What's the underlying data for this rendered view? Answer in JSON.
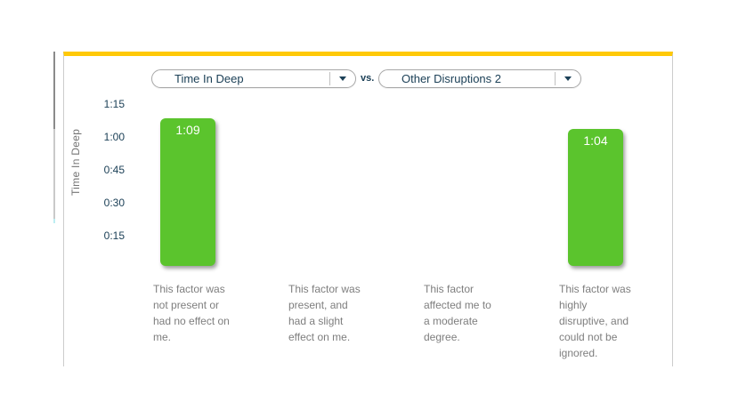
{
  "header": {
    "metric_dropdown": {
      "value": "Time In Deep"
    },
    "vs_label": "vs.",
    "factor_dropdown": {
      "value": "Other Disruptions 2"
    }
  },
  "chart": {
    "y_axis_title": "Time In Deep",
    "y_ticks": [
      "1:15",
      "1:00",
      "0:45",
      "0:30",
      "0:15"
    ],
    "categories_wrapped": [
      "This factor was\nnot present or\nhad no effect on\nme.",
      "This factor was\npresent, and\nhad a slight\neffect on me.",
      "This factor\naffected me to\na moderate\ndegree.",
      "This factor was\nhighly\ndisruptive, and\ncould not be\nignored."
    ],
    "bars": [
      {
        "label": "1:09",
        "minutes": 69,
        "category_index": 0
      },
      {
        "label": "1:04",
        "minutes": 64,
        "category_index": 3
      }
    ]
  },
  "chart_data": {
    "type": "bar",
    "title": "Time In Deep vs. Other Disruptions 2",
    "xlabel": "",
    "ylabel": "Time In Deep",
    "categories": [
      "This factor was not present or had no effect on me.",
      "This factor was present, and had a slight effect on me.",
      "This factor affected me to a moderate degree.",
      "This factor was highly disruptive, and could not be ignored."
    ],
    "series": [
      {
        "name": "Time In Deep",
        "values_minutes": [
          69,
          null,
          null,
          64
        ],
        "value_labels": [
          "1:09",
          "",
          "",
          "1:04"
        ]
      }
    ],
    "y_ticks": [
      "1:15",
      "1:00",
      "0:45",
      "0:30",
      "0:15"
    ],
    "ylim_minutes": [
      0,
      75
    ],
    "grid": false,
    "legend": "none",
    "bar_color": "#5bc42d"
  },
  "colors": {
    "bar_green": "#5bc42d",
    "accent_yellow": "#ffc907",
    "text_navy": "#1c4057",
    "text_gray": "#7e7e7e",
    "panel_border": "#cccccc"
  }
}
